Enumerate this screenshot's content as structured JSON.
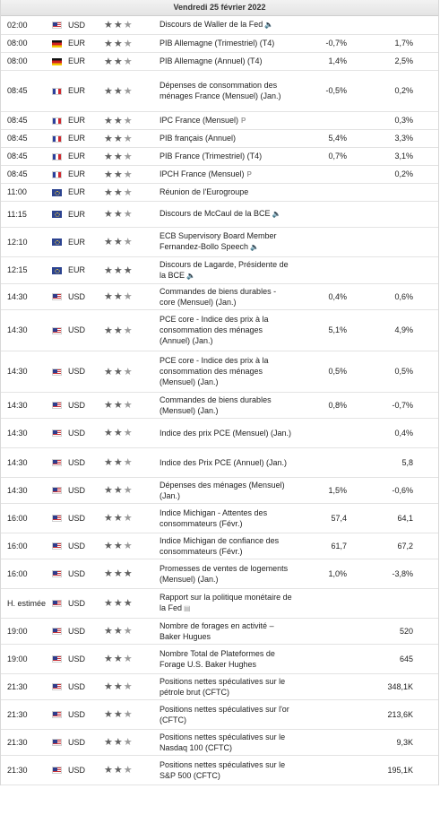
{
  "header": {
    "date": "Vendredi 25 février 2022"
  },
  "rows": [
    {
      "time": "02:00",
      "flag": "us",
      "currency": "USD",
      "stars": 2,
      "event": "Discours de Waller de la Fed",
      "icon": "speaker",
      "actual": "",
      "forecast": ""
    },
    {
      "time": "08:00",
      "flag": "de",
      "currency": "EUR",
      "stars": 2,
      "event": "PIB Allemagne (Trimestriel) (T4)",
      "icon": "",
      "actual": "-0,7%",
      "forecast": "1,7%"
    },
    {
      "time": "08:00",
      "flag": "de",
      "currency": "EUR",
      "stars": 2,
      "event": "PIB Allemagne (Annuel) (T4)",
      "icon": "",
      "actual": "1,4%",
      "forecast": "2,5%"
    },
    {
      "time": "08:45",
      "flag": "fr",
      "currency": "EUR",
      "stars": 2,
      "event": "Dépenses de consommation des ménages France (Mensuel) (Jan.)",
      "icon": "",
      "actual": "-0,5%",
      "forecast": "0,2%"
    },
    {
      "time": "08:45",
      "flag": "fr",
      "currency": "EUR",
      "stars": 2,
      "event": "IPC France (Mensuel)",
      "icon": "p",
      "actual": "",
      "forecast": "0,3%"
    },
    {
      "time": "08:45",
      "flag": "fr",
      "currency": "EUR",
      "stars": 2,
      "event": "PIB français (Annuel)",
      "icon": "",
      "actual": "5,4%",
      "forecast": "3,3%"
    },
    {
      "time": "08:45",
      "flag": "fr",
      "currency": "EUR",
      "stars": 2,
      "event": "PIB France (Trimestriel) (T4)",
      "icon": "",
      "actual": "0,7%",
      "forecast": "3,1%"
    },
    {
      "time": "08:45",
      "flag": "fr",
      "currency": "EUR",
      "stars": 2,
      "event": "IPCH France (Mensuel)",
      "icon": "p",
      "actual": "",
      "forecast": "0,2%"
    },
    {
      "time": "11:00",
      "flag": "eu",
      "currency": "EUR",
      "stars": 2,
      "event": "Réunion de l'Eurogroupe",
      "icon": "",
      "actual": "",
      "forecast": ""
    },
    {
      "time": "11:15",
      "flag": "eu",
      "currency": "EUR",
      "stars": 2,
      "event": "Discours de McCaul de la BCE",
      "icon": "speaker",
      "actual": "",
      "forecast": ""
    },
    {
      "time": "12:10",
      "flag": "eu",
      "currency": "EUR",
      "stars": 2,
      "event": "ECB Supervisory Board Member Fernandez-Bollo Speech",
      "icon": "speaker",
      "actual": "",
      "forecast": ""
    },
    {
      "time": "12:15",
      "flag": "eu",
      "currency": "EUR",
      "stars": 3,
      "event": "Discours de Lagarde, Présidente de la BCE",
      "icon": "speaker",
      "actual": "",
      "forecast": ""
    },
    {
      "time": "14:30",
      "flag": "us",
      "currency": "USD",
      "stars": 2,
      "event": "Commandes de biens durables - core (Mensuel) (Jan.)",
      "icon": "",
      "actual": "0,4%",
      "forecast": "0,6%"
    },
    {
      "time": "14:30",
      "flag": "us",
      "currency": "USD",
      "stars": 2,
      "event": "PCE core - Indice des prix à la consommation des ménages (Annuel) (Jan.)",
      "icon": "",
      "actual": "5,1%",
      "forecast": "4,9%"
    },
    {
      "time": "14:30",
      "flag": "us",
      "currency": "USD",
      "stars": 2,
      "event": "PCE core - Indice des prix à la consommation des ménages (Mensuel) (Jan.)",
      "icon": "",
      "actual": "0,5%",
      "forecast": "0,5%"
    },
    {
      "time": "14:30",
      "flag": "us",
      "currency": "USD",
      "stars": 2,
      "event": "Commandes de biens durables (Mensuel) (Jan.)",
      "icon": "",
      "actual": "0,8%",
      "forecast": "-0,7%"
    },
    {
      "time": "14:30",
      "flag": "us",
      "currency": "USD",
      "stars": 2,
      "event": "Indice des prix PCE (Mensuel) (Jan.)",
      "icon": "",
      "actual": "",
      "forecast": "0,4%"
    },
    {
      "time": "14:30",
      "flag": "us",
      "currency": "USD",
      "stars": 2,
      "event": "Indice des Prix PCE (Annuel) (Jan.)",
      "icon": "",
      "actual": "",
      "forecast": "5,8"
    },
    {
      "time": "14:30",
      "flag": "us",
      "currency": "USD",
      "stars": 2,
      "event": "Dépenses des ménages (Mensuel) (Jan.)",
      "icon": "",
      "actual": "1,5%",
      "forecast": "-0,6%"
    },
    {
      "time": "16:00",
      "flag": "us",
      "currency": "USD",
      "stars": 2,
      "event": "Indice Michigan - Attentes des consommateurs (Févr.)",
      "icon": "",
      "actual": "57,4",
      "forecast": "64,1"
    },
    {
      "time": "16:00",
      "flag": "us",
      "currency": "USD",
      "stars": 2,
      "event": "Indice Michigan de confiance des consommateurs (Févr.)",
      "icon": "",
      "actual": "61,7",
      "forecast": "67,2"
    },
    {
      "time": "16:00",
      "flag": "us",
      "currency": "USD",
      "stars": 3,
      "event": "Promesses de ventes de logements (Mensuel) (Jan.)",
      "icon": "",
      "actual": "1,0%",
      "forecast": "-3,8%"
    },
    {
      "time": "H. estimée",
      "flag": "us",
      "currency": "USD",
      "stars": 3,
      "event": "Rapport sur la politique monétaire de la Fed",
      "icon": "doc",
      "actual": "",
      "forecast": ""
    },
    {
      "time": "19:00",
      "flag": "us",
      "currency": "USD",
      "stars": 2,
      "event": "Nombre de forages en activité – Baker Hugues",
      "icon": "",
      "actual": "",
      "forecast": "520"
    },
    {
      "time": "19:00",
      "flag": "us",
      "currency": "USD",
      "stars": 2,
      "event": "Nombre Total de Plateformes de Forage U.S. Baker Hughes",
      "icon": "",
      "actual": "",
      "forecast": "645"
    },
    {
      "time": "21:30",
      "flag": "us",
      "currency": "USD",
      "stars": 2,
      "event": "Positions nettes spéculatives sur le pétrole brut (CFTC)",
      "icon": "",
      "actual": "",
      "forecast": "348,1K"
    },
    {
      "time": "21:30",
      "flag": "us",
      "currency": "USD",
      "stars": 2,
      "event": "Positions nettes spéculatives sur l'or (CFTC)",
      "icon": "",
      "actual": "",
      "forecast": "213,6K"
    },
    {
      "time": "21:30",
      "flag": "us",
      "currency": "USD",
      "stars": 2,
      "event": "Positions nettes spéculatives sur le Nasdaq 100 (CFTC)",
      "icon": "",
      "actual": "",
      "forecast": "9,3K"
    },
    {
      "time": "21:30",
      "flag": "us",
      "currency": "USD",
      "stars": 2,
      "event": "Positions nettes spéculatives sur le S&P 500 (CFTC)",
      "icon": "",
      "actual": "",
      "forecast": "195,1K"
    }
  ]
}
